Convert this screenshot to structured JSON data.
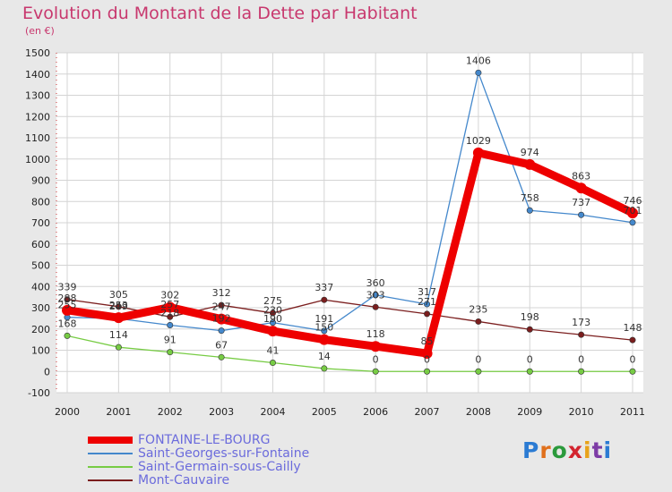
{
  "chart_data": {
    "type": "line",
    "title": "Evolution du Montant de la Dette par Habitant",
    "subtitle": "(en €)",
    "x": [
      "2000",
      "2001",
      "2002",
      "2003",
      "2004",
      "2005",
      "2006",
      "2007",
      "2008",
      "2009",
      "2010",
      "2011"
    ],
    "ylim": [
      -100,
      1500
    ],
    "yticks": [
      -100,
      0,
      100,
      200,
      300,
      400,
      500,
      600,
      700,
      800,
      900,
      1000,
      1100,
      1200,
      1300,
      1400,
      1500
    ],
    "grid": true,
    "legend_position": "bottom-left",
    "series": [
      {
        "name": "Mont-Cauvaire",
        "color": "#7b1e1e",
        "values": [
          339,
          305,
          257,
          312,
          275,
          337,
          303,
          271,
          235,
          198,
          173,
          148
        ]
      },
      {
        "name": "Saint-Germain-sous-Cailly",
        "color": "#77cc44",
        "values": [
          168,
          114,
          91,
          67,
          41,
          14,
          0,
          0,
          0,
          0,
          0,
          0
        ]
      },
      {
        "name": "Saint-Georges-sur-Fontaine",
        "color": "#4488cc",
        "values": [
          255,
          249,
          218,
          192,
          230,
          191,
          360,
          317,
          1406,
          758,
          737,
          701
        ]
      },
      {
        "name": "FONTAINE-LE-BOURG",
        "color": "#ee0000",
        "values": [
          288,
          253,
          302,
          247,
          190,
          150,
          118,
          85,
          1029,
          974,
          863,
          746
        ]
      }
    ]
  },
  "legend": [
    {
      "name": "FONTAINE-LE-BOURG",
      "color": "#ee0000"
    },
    {
      "name": "Saint-Georges-sur-Fontaine",
      "color": "#4488cc"
    },
    {
      "name": "Saint-Germain-sous-Cailly",
      "color": "#77cc44"
    },
    {
      "name": "Mont-Cauvaire",
      "color": "#7b1e1e"
    }
  ],
  "logo": {
    "text": "Proxiti"
  }
}
